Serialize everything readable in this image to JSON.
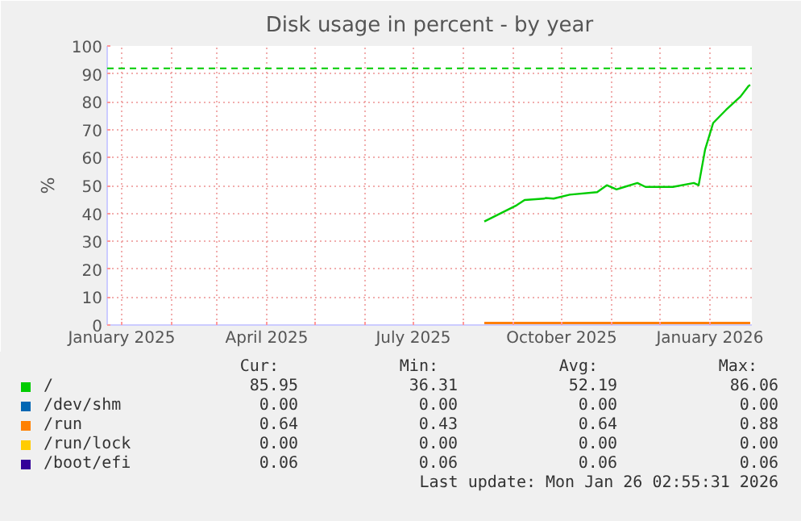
{
  "chart_data": {
    "type": "line",
    "title": "Disk usage in percent - by year",
    "ylabel": "%",
    "xlim": [
      "2024-12-23",
      "2026-01-27"
    ],
    "xticks": [
      {
        "value": "2025-01-01",
        "label": "January 2025"
      },
      {
        "value": "2025-02-01",
        "label": null
      },
      {
        "value": "2025-03-01",
        "label": null
      },
      {
        "value": "2025-04-01",
        "label": "April 2025"
      },
      {
        "value": "2025-05-01",
        "label": null
      },
      {
        "value": "2025-06-01",
        "label": null
      },
      {
        "value": "2025-07-01",
        "label": "July 2025"
      },
      {
        "value": "2025-08-01",
        "label": null
      },
      {
        "value": "2025-09-01",
        "label": null
      },
      {
        "value": "2025-10-01",
        "label": "October 2025"
      },
      {
        "value": "2025-11-01",
        "label": null
      },
      {
        "value": "2025-12-01",
        "label": null
      },
      {
        "value": "2026-01-01",
        "label": "January 2026"
      }
    ],
    "ylim": [
      0,
      100
    ],
    "yticks": [
      0,
      10,
      20,
      30,
      40,
      50,
      60,
      70,
      80,
      90,
      100
    ],
    "grid": true,
    "legend": "bottom",
    "line_style": "solid",
    "marker": "none",
    "series": [
      {
        "name": "/",
        "color": "#00cc00",
        "x": [
          "2025-08-14",
          "2025-08-24",
          "2025-09-03",
          "2025-09-08",
          "2025-09-20",
          "2025-09-21",
          "2025-09-26",
          "2025-10-06",
          "2025-10-23",
          "2025-10-29",
          "2025-11-04",
          "2025-11-09",
          "2025-11-17",
          "2025-11-22",
          "2025-12-09",
          "2025-12-22",
          "2025-12-25",
          "2025-12-29",
          "2026-01-03",
          "2026-01-11",
          "2026-01-20",
          "2026-01-25",
          "2026-01-26"
        ],
        "values": [
          37.1,
          40,
          42.9,
          44.8,
          45.3,
          45.5,
          45.3,
          46.7,
          47.6,
          50.1,
          48.6,
          49.5,
          50.9,
          49.5,
          49.5,
          50.9,
          50.1,
          62.9,
          72.4,
          77.1,
          81.9,
          85.7,
          86
        ]
      },
      {
        "name": "/dev/shm",
        "color": "#0066b3"
      },
      {
        "name": "/run",
        "color": "#ff8000",
        "x": [
          "2025-08-14",
          "2026-01-26"
        ],
        "values": [
          0.6,
          0.6
        ]
      },
      {
        "name": "/run/lock",
        "color": "#ffcc00"
      },
      {
        "name": "/boot/efi",
        "color": "#330099"
      }
    ],
    "ref_lines": [
      {
        "axis": "y",
        "value": 92,
        "color": "#00cc00",
        "line_style": "dashed"
      }
    ],
    "annotations": [
      "Cur:",
      "Min:",
      "Avg:",
      "Max:",
      "85.95",
      "36.31",
      "52.19",
      "86.06",
      "0.00",
      "0.00",
      "0.00",
      "0.00",
      "0.64",
      "0.43",
      "0.64",
      "0.88",
      "0.00",
      "0.00",
      "0.00",
      "0.00",
      "0.06",
      "0.06",
      "0.06",
      "0.06",
      "Last update: Mon Jan 26 02:55:31 2026"
    ]
  }
}
